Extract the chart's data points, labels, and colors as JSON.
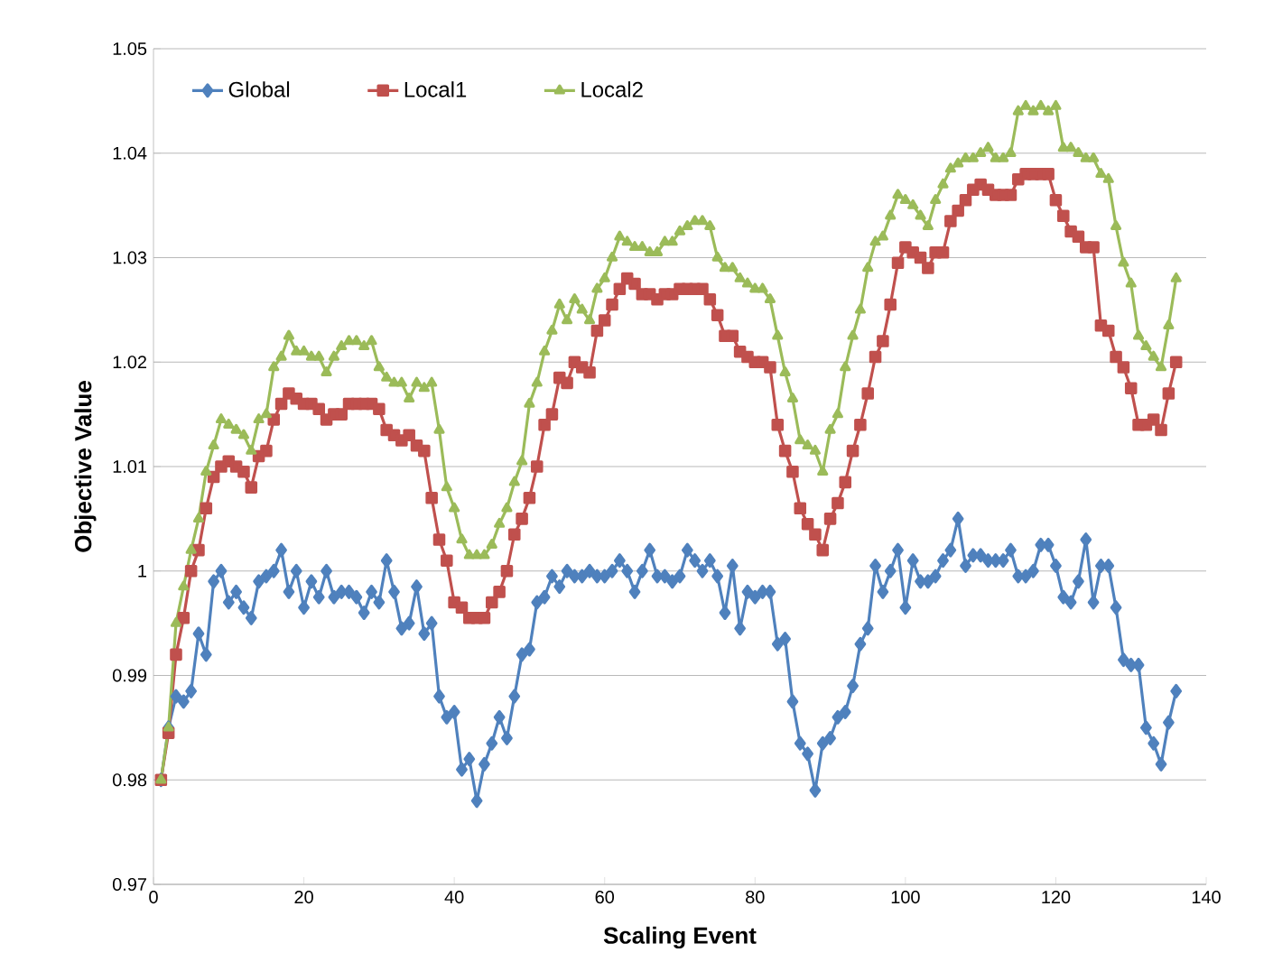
{
  "chart_data": {
    "type": "line",
    "xlabel": "Scaling Event",
    "ylabel": "Objective Value",
    "xlim": [
      0,
      140
    ],
    "xticks": [
      0,
      20,
      40,
      60,
      80,
      100,
      120,
      140
    ],
    "ylim": [
      0.97,
      1.05
    ],
    "yticks": [
      0.97,
      0.98,
      0.99,
      1,
      1.01,
      1.02,
      1.03,
      1.04,
      1.05
    ],
    "grid": "y",
    "legend": "top left",
    "line_style": "solid",
    "x": [
      1,
      2,
      3,
      4,
      5,
      6,
      7,
      8,
      9,
      10,
      11,
      12,
      13,
      14,
      15,
      16,
      17,
      18,
      19,
      20,
      21,
      22,
      23,
      24,
      25,
      26,
      27,
      28,
      29,
      30,
      31,
      32,
      33,
      34,
      35,
      36,
      37,
      38,
      39,
      40,
      41,
      42,
      43,
      44,
      45,
      46,
      47,
      48,
      49,
      50,
      51,
      52,
      53,
      54,
      55,
      56,
      57,
      58,
      59,
      60,
      61,
      62,
      63,
      64,
      65,
      66,
      67,
      68,
      69,
      70,
      71,
      72,
      73,
      74,
      75,
      76,
      77,
      78,
      79,
      80,
      81,
      82,
      83,
      84,
      85,
      86,
      87,
      88,
      89,
      90,
      91,
      92,
      93,
      94,
      95,
      96,
      97,
      98,
      99,
      100,
      101,
      102,
      103,
      104,
      105,
      106,
      107,
      108,
      109,
      110,
      111,
      112,
      113,
      114,
      115,
      116,
      117,
      118,
      119,
      120,
      121,
      122,
      123,
      124,
      125,
      126,
      127,
      128,
      129,
      130,
      131,
      132,
      133,
      134,
      135,
      136
    ],
    "series": [
      {
        "name": "Global",
        "color": "#4f81bd",
        "marker": "diamond",
        "values": [
          0.98,
          0.985,
          0.988,
          0.9875,
          0.9885,
          0.994,
          0.992,
          0.999,
          1.0,
          0.997,
          0.998,
          0.9965,
          0.9955,
          0.999,
          0.9995,
          1.0,
          1.002,
          0.998,
          1.0,
          0.9965,
          0.999,
          0.9975,
          1.0,
          0.9975,
          0.998,
          0.998,
          0.9975,
          0.996,
          0.998,
          0.997,
          1.001,
          0.998,
          0.9945,
          0.995,
          0.9985,
          0.994,
          0.995,
          0.988,
          0.986,
          0.9865,
          0.981,
          0.982,
          0.978,
          0.9815,
          0.9835,
          0.986,
          0.984,
          0.988,
          0.992,
          0.9925,
          0.997,
          0.9975,
          0.9995,
          0.9985,
          1.0,
          0.9995,
          0.9995,
          1.0,
          0.9995,
          0.9995,
          1.0,
          1.001,
          1.0,
          0.998,
          1.0,
          1.002,
          0.9995,
          0.9995,
          0.999,
          0.9995,
          1.002,
          1.001,
          1.0,
          1.001,
          0.9995,
          0.996,
          1.0005,
          0.9945,
          0.998,
          0.9975,
          0.998,
          0.998,
          0.993,
          0.9935,
          0.9875,
          0.9835,
          0.9825,
          0.979,
          0.9835,
          0.984,
          0.986,
          0.9865,
          0.989,
          0.993,
          0.9945,
          1.0005,
          0.998,
          1.0,
          1.002,
          0.9965,
          1.001,
          0.999,
          0.999,
          0.9995,
          1.001,
          1.002,
          1.005,
          1.0005,
          1.0015,
          1.0015,
          1.001,
          1.001,
          1.001,
          1.002,
          0.9995,
          0.9995,
          1.0,
          1.0025,
          1.0025,
          1.0005,
          0.9975,
          0.997,
          0.999,
          1.003,
          0.997,
          1.0005,
          1.0005,
          0.9965,
          0.9915,
          0.991,
          0.991,
          0.985,
          0.9835,
          0.9815,
          0.9855,
          0.9885
        ]
      },
      {
        "name": "Local1",
        "color": "#c0504d",
        "marker": "square",
        "values": [
          0.98,
          0.9845,
          0.992,
          0.9955,
          1.0,
          1.002,
          1.006,
          1.009,
          1.01,
          1.0105,
          1.01,
          1.0095,
          1.008,
          1.011,
          1.0115,
          1.0145,
          1.016,
          1.017,
          1.0165,
          1.016,
          1.016,
          1.0155,
          1.0145,
          1.015,
          1.015,
          1.016,
          1.016,
          1.016,
          1.016,
          1.0155,
          1.0135,
          1.013,
          1.0125,
          1.013,
          1.012,
          1.0115,
          1.007,
          1.003,
          1.001,
          0.997,
          0.9965,
          0.9955,
          0.9955,
          0.9955,
          0.997,
          0.998,
          1.0,
          1.0035,
          1.005,
          1.007,
          1.01,
          1.014,
          1.015,
          1.0185,
          1.018,
          1.02,
          1.0195,
          1.019,
          1.023,
          1.024,
          1.0255,
          1.027,
          1.028,
          1.0275,
          1.0265,
          1.0265,
          1.026,
          1.0265,
          1.0265,
          1.027,
          1.027,
          1.027,
          1.027,
          1.026,
          1.0245,
          1.0225,
          1.0225,
          1.021,
          1.0205,
          1.02,
          1.02,
          1.0195,
          1.014,
          1.0115,
          1.0095,
          1.006,
          1.0045,
          1.0035,
          1.002,
          1.005,
          1.0065,
          1.0085,
          1.0115,
          1.014,
          1.017,
          1.0205,
          1.022,
          1.0255,
          1.0295,
          1.031,
          1.0305,
          1.03,
          1.029,
          1.0305,
          1.0305,
          1.0335,
          1.0345,
          1.0355,
          1.0365,
          1.037,
          1.0365,
          1.036,
          1.036,
          1.036,
          1.0375,
          1.038,
          1.038,
          1.038,
          1.038,
          1.0355,
          1.034,
          1.0325,
          1.032,
          1.031,
          1.031,
          1.0235,
          1.023,
          1.0205,
          1.0195,
          1.0175,
          1.014,
          1.014,
          1.0145,
          1.0135,
          1.017,
          1.02
        ]
      },
      {
        "name": "Local2",
        "color": "#9bbb59",
        "marker": "triangle",
        "values": [
          0.98,
          0.985,
          0.995,
          0.9985,
          1.002,
          1.005,
          1.0095,
          1.012,
          1.0145,
          1.014,
          1.0135,
          1.013,
          1.0115,
          1.0145,
          1.015,
          1.0195,
          1.0205,
          1.0225,
          1.021,
          1.021,
          1.0205,
          1.0205,
          1.019,
          1.0205,
          1.0215,
          1.022,
          1.022,
          1.0215,
          1.022,
          1.0195,
          1.0185,
          1.018,
          1.018,
          1.0165,
          1.018,
          1.0175,
          1.018,
          1.0135,
          1.008,
          1.006,
          1.003,
          1.0015,
          1.0015,
          1.0015,
          1.0025,
          1.0045,
          1.006,
          1.0085,
          1.0105,
          1.016,
          1.018,
          1.021,
          1.023,
          1.0255,
          1.024,
          1.026,
          1.025,
          1.024,
          1.027,
          1.028,
          1.03,
          1.032,
          1.0315,
          1.031,
          1.031,
          1.0305,
          1.0305,
          1.0315,
          1.0315,
          1.0325,
          1.033,
          1.0335,
          1.0335,
          1.033,
          1.03,
          1.029,
          1.029,
          1.028,
          1.0275,
          1.027,
          1.027,
          1.026,
          1.0225,
          1.019,
          1.0165,
          1.0125,
          1.012,
          1.0115,
          1.0095,
          1.0135,
          1.015,
          1.0195,
          1.0225,
          1.025,
          1.029,
          1.0315,
          1.032,
          1.034,
          1.036,
          1.0355,
          1.035,
          1.034,
          1.033,
          1.0355,
          1.037,
          1.0385,
          1.039,
          1.0395,
          1.0395,
          1.04,
          1.0405,
          1.0395,
          1.0395,
          1.04,
          1.044,
          1.0445,
          1.044,
          1.0445,
          1.044,
          1.0445,
          1.0405,
          1.0405,
          1.04,
          1.0395,
          1.0395,
          1.038,
          1.0375,
          1.033,
          1.0295,
          1.0275,
          1.0225,
          1.0215,
          1.0205,
          1.0195,
          1.0235,
          1.028
        ]
      }
    ]
  }
}
